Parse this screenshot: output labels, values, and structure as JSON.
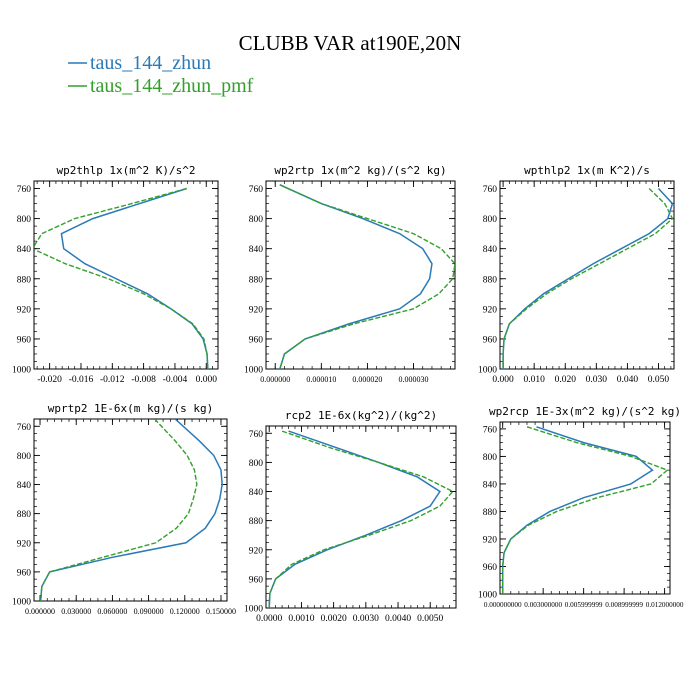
{
  "figure": {
    "title": "CLUBB VAR at190E,20N",
    "legend": [
      {
        "name": "taus_144_zhun",
        "color": "#2a7ab8",
        "dash": "solid"
      },
      {
        "name": "taus_144_zhun_pmf",
        "color": "#33a02c",
        "dash": "dashed"
      }
    ]
  },
  "chart_data": [
    {
      "type": "line",
      "title": "wp2thlp  1x(m^2 K)/s^2",
      "xlim": [
        -0.022,
        0.0015
      ],
      "ylim": [
        1000,
        750
      ],
      "xticks": [
        -0.02,
        -0.016,
        -0.012,
        -0.008,
        -0.004,
        0.0
      ],
      "xticklabels": [
        "-0.020",
        "-0.016",
        "-0.012",
        "-0.008",
        "-0.004",
        "0.000"
      ],
      "yticks": [
        760,
        800,
        840,
        880,
        920,
        960,
        1000
      ],
      "yticklabels": [
        "760",
        "800",
        "840",
        "880",
        "920",
        "960",
        "1000"
      ],
      "y": [
        760,
        780,
        800,
        820,
        840,
        860,
        880,
        900,
        920,
        940,
        960,
        980,
        1000
      ],
      "series": [
        {
          "name": "taus_144_zhun",
          "values": [
            -0.0025,
            -0.0085,
            -0.0145,
            -0.0185,
            -0.0182,
            -0.0155,
            -0.0115,
            -0.0075,
            -0.0045,
            -0.0018,
            -0.0004,
            0.0001,
            0.0002
          ]
        },
        {
          "name": "taus_144_zhun_pmf",
          "values": [
            -0.0025,
            -0.0095,
            -0.0168,
            -0.021,
            -0.0222,
            -0.018,
            -0.0125,
            -0.008,
            -0.0045,
            -0.0017,
            -0.0003,
            0.0001,
            0.0002
          ]
        }
      ]
    },
    {
      "type": "line",
      "title": "wp2rtp  1x(m^2 kg)/(s^2 kg)",
      "xlim": [
        -2e-06,
        3.9e-05
      ],
      "ylim": [
        1000,
        750
      ],
      "xticks": [
        0.0,
        1e-05,
        2e-05,
        3e-05
      ],
      "xticklabels": [
        "0.000000",
        "0.000010",
        "0.000020",
        "0.000030"
      ],
      "yticks": [
        760,
        800,
        840,
        880,
        920,
        960,
        1000
      ],
      "yticklabels": [
        "760",
        "800",
        "840",
        "880",
        "920",
        "960",
        "1000"
      ],
      "y": [
        755,
        780,
        800,
        820,
        840,
        860,
        880,
        900,
        920,
        940,
        960,
        980,
        1000
      ],
      "series": [
        {
          "name": "taus_144_zhun",
          "values": [
            1e-06,
            1e-05,
            1.9e-05,
            2.7e-05,
            3.2e-05,
            3.4e-05,
            3.35e-05,
            3.15e-05,
            2.7e-05,
            1.6e-05,
            6.5e-06,
            2e-06,
            1e-06
          ]
        },
        {
          "name": "taus_144_zhun_pmf",
          "values": [
            1e-06,
            1e-05,
            2e-05,
            3e-05,
            3.6e-05,
            3.9e-05,
            3.85e-05,
            3.55e-05,
            3e-05,
            1.7e-05,
            6.5e-06,
            2e-06,
            1e-06
          ]
        }
      ]
    },
    {
      "type": "line",
      "title": "wpthlp2  1x(m K^2)/s",
      "xlim": [
        -0.001,
        0.055
      ],
      "ylim": [
        1000,
        750
      ],
      "xticks": [
        0.0,
        0.01,
        0.02,
        0.03,
        0.04,
        0.05
      ],
      "xticklabels": [
        "0.000",
        "0.010",
        "0.020",
        "0.030",
        "0.040",
        "0.050"
      ],
      "yticks": [
        760,
        800,
        840,
        880,
        920,
        960,
        1000
      ],
      "yticklabels": [
        "760",
        "800",
        "840",
        "880",
        "920",
        "960",
        "1000"
      ],
      "y": [
        760,
        780,
        800,
        820,
        840,
        860,
        880,
        900,
        920,
        940,
        960,
        980,
        1000
      ],
      "series": [
        {
          "name": "taus_144_zhun",
          "values": [
            0.05,
            0.0545,
            0.053,
            0.047,
            0.038,
            0.029,
            0.021,
            0.013,
            0.007,
            0.002,
            0.0003,
            0.0,
            0.0
          ]
        },
        {
          "name": "taus_144_zhun_pmf",
          "values": [
            0.047,
            0.052,
            0.0545,
            0.049,
            0.04,
            0.031,
            0.022,
            0.014,
            0.0075,
            0.002,
            0.0003,
            0.0,
            0.0
          ]
        }
      ]
    },
    {
      "type": "line",
      "title": "wprtp2  1E-6x(m kg)/(s kg)",
      "xlim": [
        -0.005,
        0.155
      ],
      "ylim": [
        1000,
        750
      ],
      "xticks": [
        0.0,
        0.03,
        0.06,
        0.09,
        0.12,
        0.15
      ],
      "xticklabels": [
        "0.000000",
        "0.030000",
        "0.060000",
        "0.090000",
        "0.120000",
        "0.150000"
      ],
      "yticks": [
        760,
        800,
        840,
        880,
        920,
        960,
        1000
      ],
      "yticklabels": [
        "760",
        "800",
        "840",
        "880",
        "920",
        "960",
        "1000"
      ],
      "y": [
        750,
        780,
        800,
        820,
        840,
        860,
        880,
        900,
        920,
        940,
        960,
        980,
        1000
      ],
      "series": [
        {
          "name": "taus_144_zhun",
          "values": [
            0.112,
            0.132,
            0.144,
            0.15,
            0.151,
            0.149,
            0.145,
            0.137,
            0.121,
            0.06,
            0.008,
            0.0015,
            0.0005
          ]
        },
        {
          "name": "taus_144_zhun_pmf",
          "values": [
            0.095,
            0.112,
            0.122,
            0.128,
            0.13,
            0.127,
            0.123,
            0.113,
            0.096,
            0.052,
            0.008,
            0.0015,
            0.0005
          ]
        }
      ]
    },
    {
      "type": "line",
      "title": "rcp2  1E-6x(kg^2)/(kg^2)",
      "xlim": [
        -0.0001,
        0.0058
      ],
      "ylim": [
        1000,
        750
      ],
      "xticks": [
        0.0,
        0.001,
        0.002,
        0.003,
        0.004,
        0.005
      ],
      "xticklabels": [
        "0.0000",
        "0.0010",
        "0.0020",
        "0.0030",
        "0.0040",
        "0.0050"
      ],
      "yticks": [
        760,
        800,
        840,
        880,
        920,
        960,
        1000
      ],
      "yticklabels": [
        "760",
        "800",
        "840",
        "880",
        "920",
        "960",
        "1000"
      ],
      "y": [
        757,
        780,
        800,
        820,
        840,
        860,
        880,
        900,
        920,
        940,
        960,
        980,
        1000
      ],
      "series": [
        {
          "name": "taus_144_zhun",
          "values": [
            0.0006,
            0.0021,
            0.0034,
            0.0046,
            0.0053,
            0.005,
            0.0041,
            0.003,
            0.0018,
            0.0008,
            0.0002,
            2e-05,
            0.0
          ]
        },
        {
          "name": "taus_144_zhun_pmf",
          "values": [
            0.0004,
            0.0019,
            0.0034,
            0.0048,
            0.0057,
            0.0053,
            0.0044,
            0.0031,
            0.0017,
            0.0007,
            0.0002,
            2e-05,
            0.0
          ]
        }
      ]
    },
    {
      "type": "line",
      "title": "wp2rcp  1E-3x(m^2 kg)/(s^2 kg)",
      "xlim": [
        -0.0002,
        0.0124
      ],
      "ylim": [
        1000,
        750
      ],
      "xticks": [
        0.0,
        0.003,
        0.006,
        0.009,
        0.012
      ],
      "xticklabels": [
        "0.000000000",
        "0.003000000",
        "0.005999999",
        "0.008999999",
        "0.012000000"
      ],
      "yticks": [
        760,
        800,
        840,
        880,
        920,
        960,
        1000
      ],
      "yticklabels": [
        "760",
        "800",
        "840",
        "880",
        "920",
        "960",
        "1000"
      ],
      "y": [
        757,
        780,
        800,
        820,
        840,
        860,
        880,
        900,
        920,
        940,
        960,
        980,
        1000
      ],
      "series": [
        {
          "name": "taus_144_zhun",
          "values": [
            0.0025,
            0.006,
            0.0099,
            0.0111,
            0.0095,
            0.006,
            0.0035,
            0.0018,
            0.0006,
            0.0001,
            0.0,
            0.0,
            0.0
          ]
        },
        {
          "name": "taus_144_zhun_pmf",
          "values": [
            0.0018,
            0.0055,
            0.0095,
            0.0122,
            0.011,
            0.007,
            0.004,
            0.0019,
            0.0006,
            0.0001,
            0.0,
            0.0,
            0.0
          ]
        }
      ]
    }
  ]
}
